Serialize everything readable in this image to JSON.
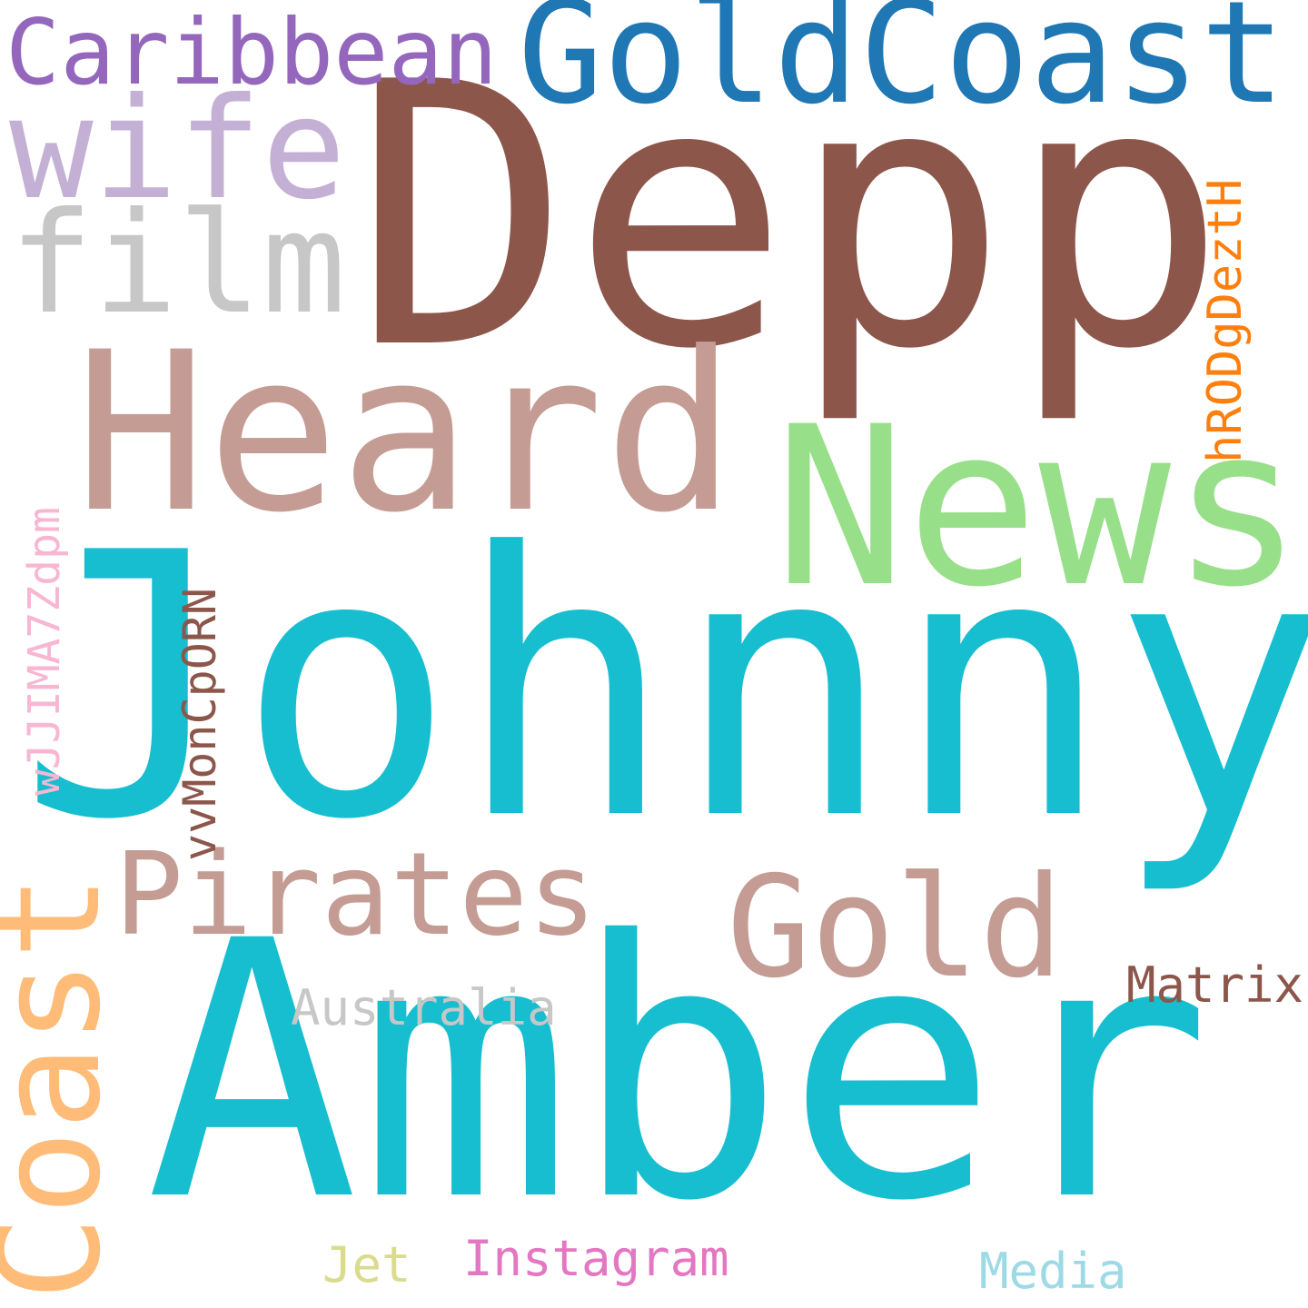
{
  "words": {
    "depp": {
      "text": "Depp",
      "color": "#8c564b"
    },
    "johnny": {
      "text": "Johnny",
      "color": "#17becf"
    },
    "amber": {
      "text": "Amber",
      "color": "#17becf"
    },
    "heard": {
      "text": "Heard",
      "color": "#c49c94"
    },
    "news": {
      "text": "News",
      "color": "#98df8a"
    },
    "goldcoast": {
      "text": "GoldCoast",
      "color": "#1f77b4"
    },
    "caribbean": {
      "text": "Caribbean",
      "color": "#9467bd"
    },
    "wife": {
      "text": "wife",
      "color": "#c5b0d5"
    },
    "film": {
      "text": "film",
      "color": "#c7c7c7"
    },
    "coast": {
      "text": "Coast",
      "color": "#ffbb78"
    },
    "pirates": {
      "text": "Pirates",
      "color": "#c49c94"
    },
    "gold": {
      "text": "Gold",
      "color": "#c49c94"
    },
    "australia": {
      "text": "Australia",
      "color": "#c7c7c7"
    },
    "matrix": {
      "text": "Matrix",
      "color": "#8c564b"
    },
    "instagram": {
      "text": "Instagram",
      "color": "#e377c2"
    },
    "jet": {
      "text": "Jet",
      "color": "#dbdb8d"
    },
    "media": {
      "text": "Media",
      "color": "#9edae5"
    },
    "vvmon": {
      "text": "vvMonCpORN",
      "color": "#8c564b"
    },
    "wjjima": {
      "text": "wJJIMA7Zdpm",
      "color": "#f7b6d2"
    },
    "hrodg": {
      "text": "hRODgDeztH",
      "color": "#ff7f0e"
    }
  }
}
